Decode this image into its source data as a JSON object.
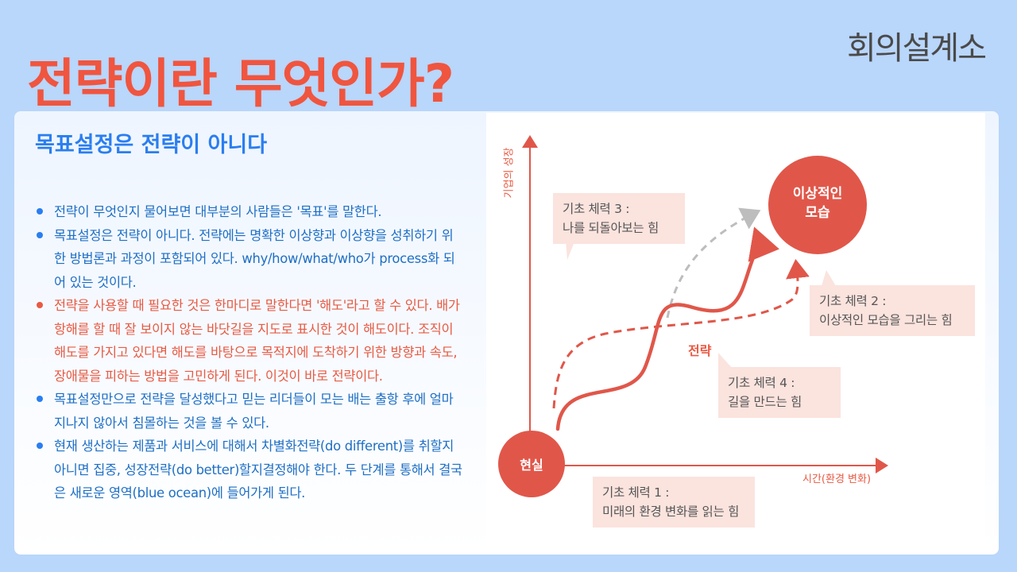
{
  "header": {
    "title": "전략이란 무엇인가?",
    "logo": "회의설계소"
  },
  "content": {
    "subtitle": "목표설정은 전략이 아니다",
    "bullets": [
      {
        "text": "전략이 무엇인지 물어보면 대부분의 사람들은 '목표'를 말한다.",
        "color": "#1e6fc4"
      },
      {
        "text": "목표설정은 전략이 아니다. 전략에는 명확한 이상향과 이상향을 성취하기 위한 방법론과 과정이 포함되어 있다. why/how/what/who가 process화 되어 있는 것이다.",
        "color": "#1e6fc4"
      },
      {
        "text": "전략을 사용할 때 필요한 것은 한마디로 말한다면 '해도'라고 할 수 있다. 배가 항해를 할 때 잘 보이지 않는 바닷길을 지도로 표시한 것이 해도이다. 조직이 해도를 가지고 있다면 해도를 바탕으로 목적지에 도착하기 위한 방향과 속도, 장애물을 피하는 방법을 고민하게 된다. 이것이 바로 전략이다.",
        "color": "#e85a43"
      },
      {
        "text": "목표설정만으로 전략을 달성했다고 믿는 리더들이 모는 배는 출항 후에 얼마 지나지 않아서 침몰하는 것을 볼 수 있다.",
        "color": "#1e6fc4"
      },
      {
        "text": "현재 생산하는 제품과 서비스에 대해서 차별화전략(do different)를 취할지 아니면 집중, 성장전략(do better)할지결정해야 한다. 두 단계를 통해서 결국은 새로운 영역(blue ocean)에 들어가게 된다.",
        "color": "#1e6fc4"
      }
    ]
  },
  "diagram": {
    "y_axis_label": "기업의 성장",
    "x_axis_label": "시간(환경 변화)",
    "start_label": "현실",
    "goal_label_line1": "이상적인",
    "goal_label_line2": "모습",
    "strategy_label": "전략",
    "boxes": [
      {
        "title": "기초 체력 1 :",
        "desc": "미래의 환경 변화를 읽는 힘"
      },
      {
        "title": "기초 체력 2 :",
        "desc": "이상적인 모습을 그리는 힘"
      },
      {
        "title": "기초 체력 3 :",
        "desc": "나를 되돌아보는 힘"
      },
      {
        "title": "기초 체력 4 :",
        "desc": "길을 만드는 힘"
      }
    ],
    "colors": {
      "accent": "#e0574a",
      "box": "#fbe3de",
      "gray_arrow": "#bdbdbd"
    }
  }
}
